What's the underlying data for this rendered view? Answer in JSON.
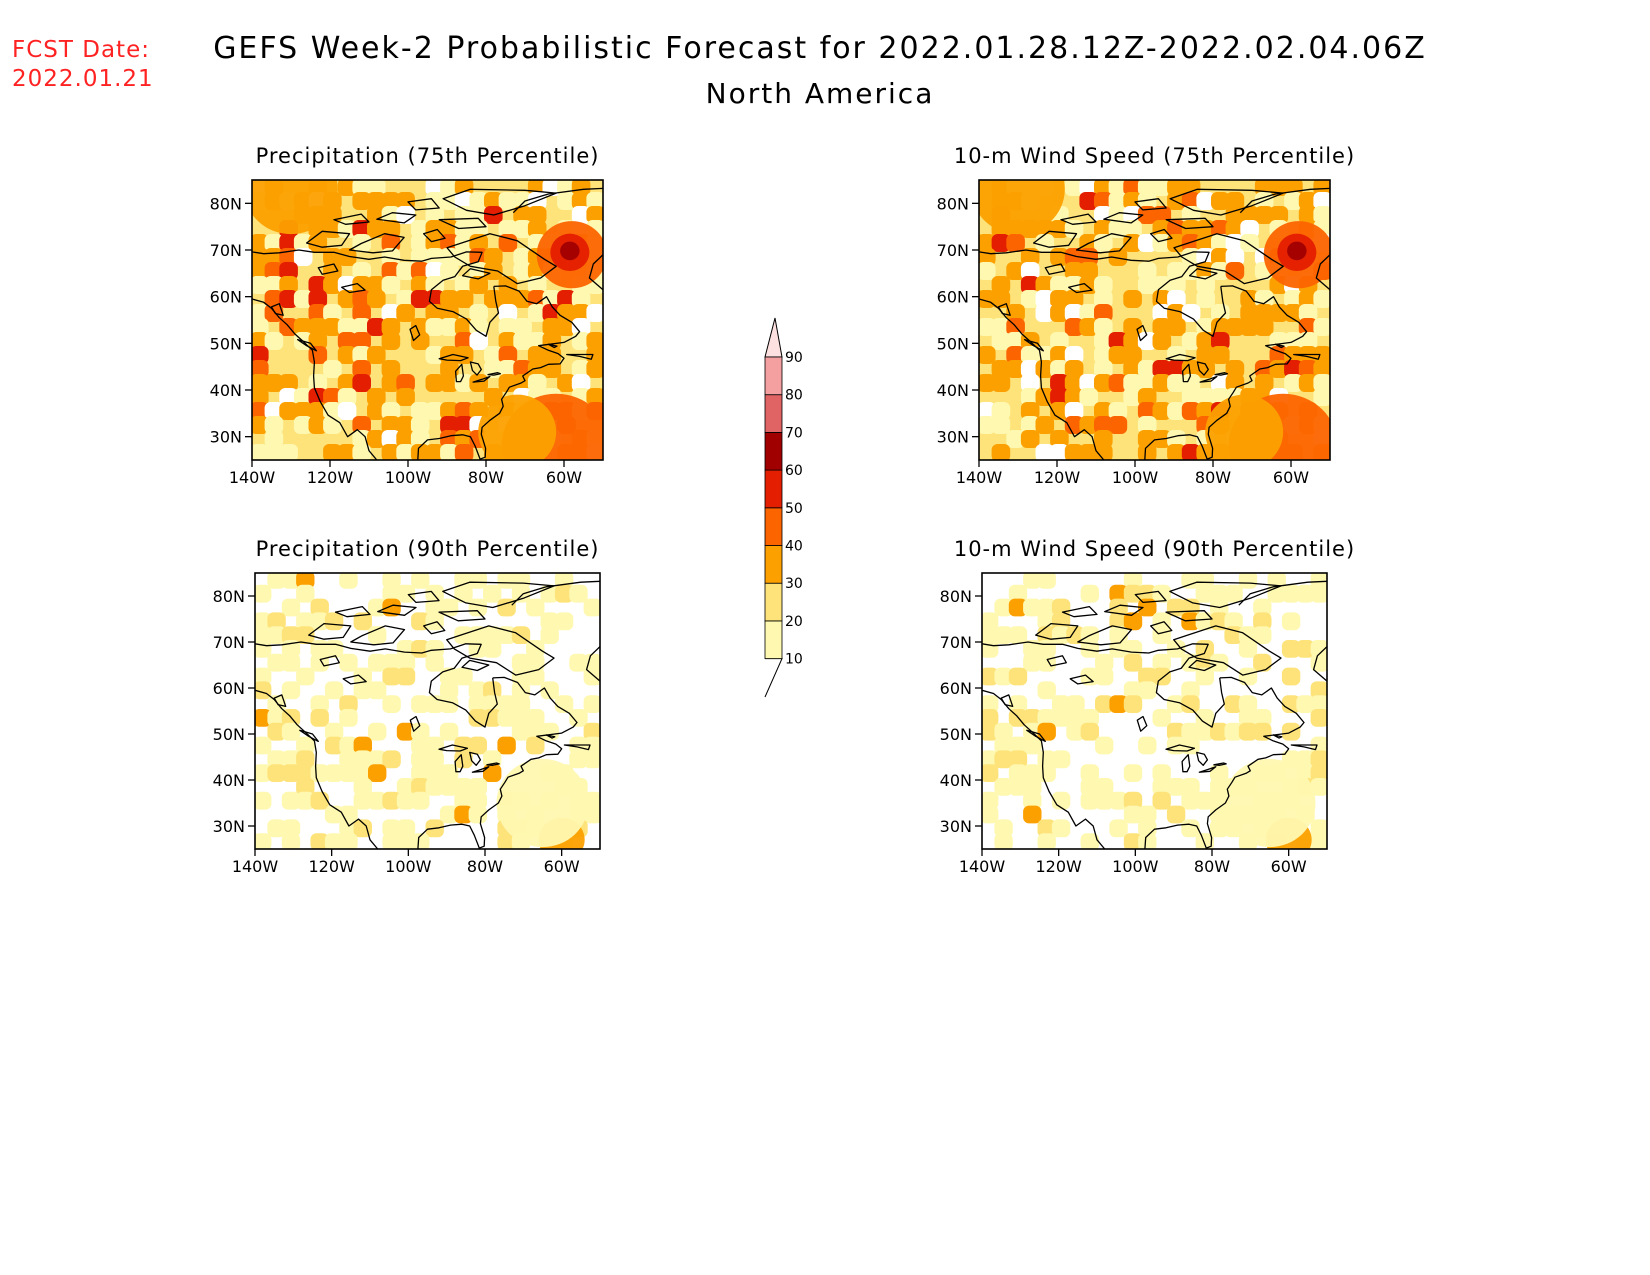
{
  "header": {
    "fcst_label": "FCST Date:",
    "fcst_date": "2022.01.21",
    "title": "GEFS Week-2 Probabilistic Forecast for 2022.01.28.12Z-2022.02.04.06Z",
    "subtitle": "North America"
  },
  "axes": {
    "lat_ticks": [
      "80N",
      "70N",
      "60N",
      "50N",
      "40N",
      "30N"
    ],
    "lon_ticks": [
      "140W",
      "120W",
      "100W",
      "80W",
      "60W"
    ]
  },
  "colors": {
    "c10": "#fff8b0",
    "c20": "#fde37a",
    "c30": "#fca000",
    "c40": "#fc6400",
    "c50": "#e41e00",
    "c60": "#a00000",
    "c70": "#e06464",
    "c80": "#f4a0a0",
    "c90": "#fde0e0",
    "coast": "#000000"
  },
  "panels": [
    {
      "id": "precip-75",
      "title": "Precipitation (75th Percentile)",
      "level": "high"
    },
    {
      "id": "wind-75",
      "title": "10-m Wind Speed (75th Percentile)",
      "level": "high"
    },
    {
      "id": "precip-90",
      "title": "Precipitation (90th Percentile)",
      "level": "low"
    },
    {
      "id": "wind-90",
      "title": "10-m Wind Speed (90th Percentile)",
      "level": "low"
    }
  ],
  "colorbar": {
    "labels": [
      "10",
      "20",
      "30",
      "40",
      "50",
      "60",
      "70",
      "80",
      "90"
    ]
  }
}
